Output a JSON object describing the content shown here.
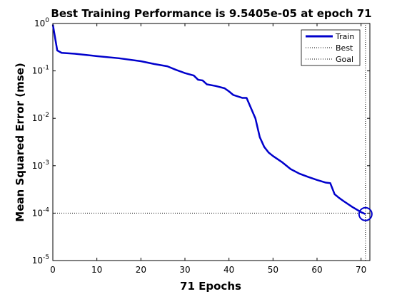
{
  "chart_data": {
    "type": "line",
    "title": "Best Training Performance is 9.5405e-05 at epoch 71",
    "xlabel": "71 Epochs",
    "ylabel": "Mean Squared Error  (mse)",
    "xlim": [
      0,
      72
    ],
    "ylim": [
      1e-05,
      1
    ],
    "yscale": "log",
    "xticks": [
      0,
      10,
      20,
      30,
      40,
      50,
      60,
      70
    ],
    "yticks": [
      {
        "base": "10",
        "exp": "0",
        "value": 1
      },
      {
        "base": "10",
        "exp": "-1",
        "value": 0.1
      },
      {
        "base": "10",
        "exp": "-2",
        "value": 0.01
      },
      {
        "base": "10",
        "exp": "-3",
        "value": 0.001
      },
      {
        "base": "10",
        "exp": "-4",
        "value": 0.0001
      },
      {
        "base": "10",
        "exp": "-5",
        "value": 1e-05
      }
    ],
    "grid": false,
    "legend_position": "top-right",
    "series": [
      {
        "name": "Train",
        "color": "#0000cc",
        "style": "solid",
        "points": [
          [
            0,
            0.95
          ],
          [
            1,
            0.27
          ],
          [
            2,
            0.24
          ],
          [
            5,
            0.23
          ],
          [
            10,
            0.205
          ],
          [
            15,
            0.185
          ],
          [
            20,
            0.16
          ],
          [
            23,
            0.14
          ],
          [
            26,
            0.125
          ],
          [
            28,
            0.105
          ],
          [
            30,
            0.09
          ],
          [
            32,
            0.08
          ],
          [
            33,
            0.065
          ],
          [
            34,
            0.063
          ],
          [
            35,
            0.052
          ],
          [
            37,
            0.048
          ],
          [
            39,
            0.043
          ],
          [
            40,
            0.037
          ],
          [
            41,
            0.031
          ],
          [
            42,
            0.029
          ],
          [
            43,
            0.027
          ],
          [
            44,
            0.027
          ],
          [
            46,
            0.01
          ],
          [
            47,
            0.004
          ],
          [
            48,
            0.0025
          ],
          [
            49,
            0.0019
          ],
          [
            50,
            0.0016
          ],
          [
            52,
            0.0012
          ],
          [
            54,
            0.00085
          ],
          [
            56,
            0.00068
          ],
          [
            58,
            0.00058
          ],
          [
            60,
            0.0005
          ],
          [
            62,
            0.00044
          ],
          [
            63,
            0.00043
          ],
          [
            64,
            0.00025
          ],
          [
            65,
            0.00021
          ],
          [
            66,
            0.00018
          ],
          [
            68,
            0.000135
          ],
          [
            70,
            0.000105
          ],
          [
            71,
            9.5405e-05
          ]
        ]
      },
      {
        "name": "Best",
        "color": "#000000",
        "style": "dotted",
        "points": [
          [
            71,
            1e-05
          ],
          [
            71,
            1
          ]
        ]
      },
      {
        "name": "Goal",
        "color": "#000000",
        "style": "dotted",
        "points": [
          [
            0,
            0.0001
          ],
          [
            72,
            0.0001
          ]
        ]
      }
    ],
    "marker": {
      "x": 71,
      "y": 9.5405e-05,
      "color": "#0000cc",
      "shape": "circle"
    }
  }
}
